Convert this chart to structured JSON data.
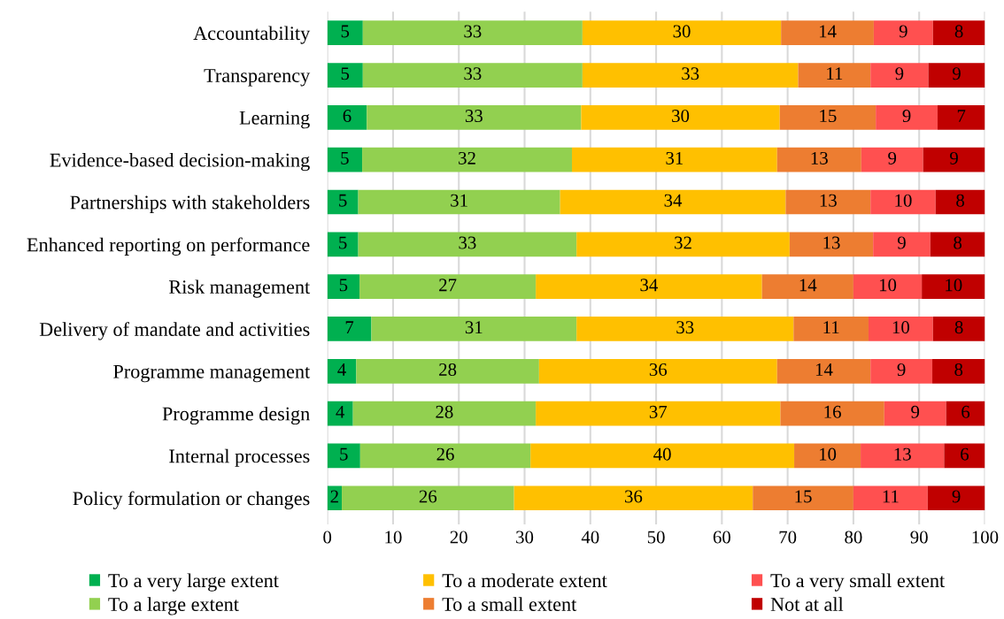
{
  "chart_data": {
    "type": "bar",
    "orientation": "horizontal",
    "stacked": true,
    "categories": [
      "Accountability",
      "Transparency",
      "Learning",
      "Evidence-based decision-making",
      "Partnerships with stakeholders",
      "Enhanced reporting on performance",
      "Risk management",
      "Delivery of mandate and activities",
      "Programme management",
      "Programme design",
      "Internal processes",
      "Policy formulation or changes"
    ],
    "series": [
      {
        "name": "To a very large extent",
        "color": "#00b050",
        "values": [
          5.4,
          5.4,
          6.0,
          5.3,
          4.7,
          4.7,
          4.9,
          6.7,
          4.4,
          3.9,
          5.0,
          2.2
        ],
        "value_labels": [
          "5",
          "5",
          "6",
          "5",
          "5",
          "5",
          "5",
          "7",
          "4",
          "4",
          "5",
          "2"
        ]
      },
      {
        "name": "To a large extent",
        "color": "#92d050",
        "values": [
          33.4,
          33.4,
          32.6,
          31.9,
          30.7,
          33.2,
          26.8,
          31.2,
          27.8,
          27.8,
          25.9,
          26.2
        ],
        "value_labels": [
          "33",
          "33",
          "33",
          "32",
          "31",
          "33",
          "27",
          "31",
          "28",
          "28",
          "26",
          "26"
        ]
      },
      {
        "name": "To a moderate extent",
        "color": "#ffc000",
        "values": [
          30.2,
          32.8,
          30.2,
          31.2,
          34.3,
          32.4,
          34.4,
          33.0,
          36.2,
          37.2,
          40.1,
          36.3
        ],
        "value_labels": [
          "30",
          "33",
          "30",
          "31",
          "34",
          "32",
          "34",
          "33",
          "36",
          "37",
          "40",
          "36"
        ]
      },
      {
        "name": "To a small extent",
        "color": "#ed7d31",
        "values": [
          14.1,
          11.0,
          14.6,
          12.8,
          12.9,
          12.7,
          13.9,
          11.4,
          14.2,
          15.8,
          10.1,
          15.3
        ],
        "value_labels": [
          "14",
          "11",
          "15",
          "13",
          "13",
          "13",
          "14",
          "11",
          "14",
          "16",
          "10",
          "15"
        ]
      },
      {
        "name": "To a very small extent",
        "color": "#ff5050",
        "values": [
          9.0,
          8.8,
          9.4,
          9.4,
          9.9,
          8.7,
          10.4,
          9.8,
          9.4,
          9.4,
          12.7,
          11.3
        ],
        "value_labels": [
          "9",
          "9",
          "9",
          "9",
          "10",
          "9",
          "10",
          "10",
          "9",
          "9",
          "13",
          "11"
        ]
      },
      {
        "name": "Not at all",
        "color": "#c00000",
        "values": [
          7.9,
          8.6,
          7.2,
          9.4,
          7.5,
          8.3,
          9.6,
          7.9,
          8.0,
          5.9,
          6.2,
          8.7
        ],
        "value_labels": [
          "8",
          "9",
          "7",
          "9",
          "8",
          "8",
          "10",
          "8",
          "8",
          "6",
          "6",
          "9"
        ]
      }
    ],
    "xlim": [
      0,
      100
    ],
    "xticks": [
      0,
      10,
      20,
      30,
      40,
      50,
      60,
      70,
      80,
      90,
      100
    ],
    "grid": "x",
    "legend": "bottom"
  }
}
